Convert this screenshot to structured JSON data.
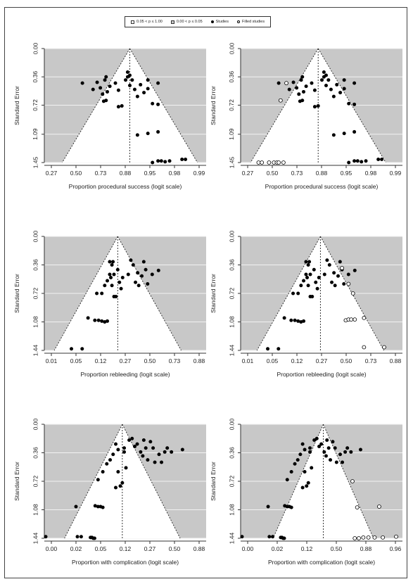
{
  "legend": {
    "items": [
      {
        "label": "0.05 < p ≤ 1.00",
        "swatch": "#ffffff"
      },
      {
        "label": "0.00 < p ≤ 0.05",
        "swatch": "#c8c8c8"
      },
      {
        "label": "Studies",
        "marker": "filled"
      },
      {
        "label": "Filled studies",
        "marker": "open"
      }
    ]
  },
  "colors": {
    "contour": "#c8c8c8",
    "funnel": "#ffffff",
    "grid": "#e8e8e8",
    "point": "#000000",
    "axis": "#333333"
  },
  "chart_data": [
    {
      "type": "scatter",
      "id": "success-observed",
      "xlabel": "Proportion procedural success (logit scale)",
      "ylabel": "Standard Error",
      "x_ticks": [
        "0.27",
        "0.50",
        "0.73",
        "0.88",
        "0.95",
        "0.98",
        "0.99"
      ],
      "y_ticks": [
        "0.00",
        "0.36",
        "0.72",
        "1.09",
        "1.45"
      ],
      "ylim": [
        0,
        1.45
      ],
      "x_logit_range": [
        -1.6,
        5.2
      ],
      "center": 0.88,
      "y_inverted": true,
      "studies": [
        [
          0.5,
          0.44
        ],
        [
          0.61,
          0.52
        ],
        [
          0.65,
          0.43
        ],
        [
          0.68,
          0.5
        ],
        [
          0.7,
          0.58
        ],
        [
          0.72,
          0.4
        ],
        [
          0.73,
          0.36
        ],
        [
          0.74,
          0.55
        ],
        [
          0.71,
          0.67
        ],
        [
          0.73,
          0.66
        ],
        [
          0.76,
          0.48
        ],
        [
          0.8,
          0.44
        ],
        [
          0.82,
          0.53
        ],
        [
          0.82,
          0.74
        ],
        [
          0.84,
          0.73
        ],
        [
          0.86,
          0.4
        ],
        [
          0.87,
          0.3
        ],
        [
          0.87,
          0.36
        ],
        [
          0.88,
          0.34
        ],
        [
          0.88,
          0.47
        ],
        [
          0.89,
          0.4
        ],
        [
          0.9,
          0.52
        ],
        [
          0.91,
          0.61
        ],
        [
          0.92,
          0.46
        ],
        [
          0.93,
          0.56
        ],
        [
          0.94,
          0.4
        ],
        [
          0.94,
          0.51
        ],
        [
          0.95,
          0.7
        ],
        [
          0.96,
          0.44
        ],
        [
          0.96,
          0.71
        ],
        [
          0.91,
          1.1
        ],
        [
          0.94,
          1.08
        ],
        [
          0.96,
          1.06
        ],
        [
          0.95,
          1.45
        ],
        [
          0.96,
          1.43
        ],
        [
          0.965,
          1.43
        ],
        [
          0.97,
          1.44
        ],
        [
          0.975,
          1.43
        ],
        [
          0.985,
          1.41
        ],
        [
          0.987,
          1.41
        ]
      ],
      "filled": []
    },
    {
      "type": "scatter",
      "id": "success-filled",
      "xlabel": "Proportion procedural success (logit scale)",
      "ylabel": "Standard Error",
      "x_ticks": [
        "0.27",
        "0.50",
        "0.73",
        "0.88",
        "0.95",
        "0.98",
        "0.99"
      ],
      "y_ticks": [
        "0.00",
        "0.36",
        "0.72",
        "1.09",
        "1.45"
      ],
      "ylim": [
        0,
        1.45
      ],
      "x_logit_range": [
        -1.6,
        5.2
      ],
      "center": 0.84,
      "y_inverted": true,
      "studies": [
        [
          0.5,
          0.44
        ],
        [
          0.61,
          0.52
        ],
        [
          0.65,
          0.43
        ],
        [
          0.68,
          0.5
        ],
        [
          0.7,
          0.58
        ],
        [
          0.72,
          0.4
        ],
        [
          0.73,
          0.36
        ],
        [
          0.74,
          0.55
        ],
        [
          0.71,
          0.67
        ],
        [
          0.73,
          0.66
        ],
        [
          0.76,
          0.48
        ],
        [
          0.8,
          0.44
        ],
        [
          0.82,
          0.53
        ],
        [
          0.82,
          0.74
        ],
        [
          0.84,
          0.73
        ],
        [
          0.86,
          0.4
        ],
        [
          0.87,
          0.3
        ],
        [
          0.87,
          0.36
        ],
        [
          0.88,
          0.34
        ],
        [
          0.88,
          0.47
        ],
        [
          0.89,
          0.4
        ],
        [
          0.9,
          0.52
        ],
        [
          0.91,
          0.61
        ],
        [
          0.92,
          0.46
        ],
        [
          0.93,
          0.56
        ],
        [
          0.94,
          0.4
        ],
        [
          0.94,
          0.51
        ],
        [
          0.95,
          0.7
        ],
        [
          0.96,
          0.44
        ],
        [
          0.96,
          0.71
        ],
        [
          0.91,
          1.1
        ],
        [
          0.94,
          1.08
        ],
        [
          0.96,
          1.06
        ],
        [
          0.95,
          1.45
        ],
        [
          0.96,
          1.43
        ],
        [
          0.965,
          1.43
        ],
        [
          0.97,
          1.44
        ],
        [
          0.975,
          1.43
        ],
        [
          0.985,
          1.41
        ],
        [
          0.987,
          1.41
        ]
      ],
      "filled": [
        [
          0.58,
          0.44
        ],
        [
          0.52,
          0.66
        ],
        [
          0.3,
          1.45
        ],
        [
          0.33,
          1.45
        ],
        [
          0.4,
          1.45
        ],
        [
          0.45,
          1.45
        ],
        [
          0.48,
          1.45
        ],
        [
          0.5,
          1.45
        ],
        [
          0.55,
          1.45
        ]
      ]
    },
    {
      "type": "scatter",
      "id": "rebleeding-observed",
      "xlabel": "Proportion rebleeding (logit scale)",
      "ylabel": "Standard Error",
      "x_ticks": [
        "0.01",
        "0.05",
        "0.12",
        "0.27",
        "0.50",
        "0.73",
        "0.88"
      ],
      "y_ticks": [
        "0.00",
        "0.36",
        "0.72",
        "1.08",
        "1.44"
      ],
      "ylim": [
        0,
        1.44
      ],
      "x_logit_range": [
        -5.0,
        2.2
      ],
      "center": 0.15,
      "y_inverted": true,
      "studies": [
        [
          0.022,
          1.42
        ],
        [
          0.035,
          1.42
        ],
        [
          0.045,
          1.03
        ],
        [
          0.06,
          1.06
        ],
        [
          0.07,
          1.06
        ],
        [
          0.08,
          1.07
        ],
        [
          0.09,
          1.08
        ],
        [
          0.1,
          1.07
        ],
        [
          0.065,
          0.72
        ],
        [
          0.08,
          0.72
        ],
        [
          0.09,
          0.62
        ],
        [
          0.1,
          0.56
        ],
        [
          0.11,
          0.48
        ],
        [
          0.11,
          0.32
        ],
        [
          0.115,
          0.52
        ],
        [
          0.12,
          0.62
        ],
        [
          0.12,
          0.36
        ],
        [
          0.125,
          0.32
        ],
        [
          0.13,
          0.48
        ],
        [
          0.13,
          0.76
        ],
        [
          0.14,
          0.76
        ],
        [
          0.15,
          0.42
        ],
        [
          0.16,
          0.58
        ],
        [
          0.17,
          0.66
        ],
        [
          0.18,
          0.52
        ],
        [
          0.22,
          0.48
        ],
        [
          0.24,
          0.3
        ],
        [
          0.26,
          0.36
        ],
        [
          0.28,
          0.58
        ],
        [
          0.3,
          0.46
        ],
        [
          0.31,
          0.62
        ],
        [
          0.34,
          0.5
        ],
        [
          0.36,
          0.32
        ],
        [
          0.38,
          0.42
        ],
        [
          0.4,
          0.6
        ],
        [
          0.45,
          0.48
        ],
        [
          0.52,
          0.43
        ]
      ],
      "filled": []
    },
    {
      "type": "scatter",
      "id": "rebleeding-filled",
      "xlabel": "Proportion rebleeding (logit scale)",
      "ylabel": "Standard Error",
      "x_ticks": [
        "0.01",
        "0.05",
        "0.12",
        "0.27",
        "0.50",
        "0.73",
        "0.88"
      ],
      "y_ticks": [
        "0.00",
        "0.36",
        "0.72",
        "1.08",
        "1.44"
      ],
      "ylim": [
        0,
        1.44
      ],
      "x_logit_range": [
        -5.0,
        2.2
      ],
      "center": 0.19,
      "y_inverted": true,
      "studies": [
        [
          0.022,
          1.42
        ],
        [
          0.035,
          1.42
        ],
        [
          0.045,
          1.03
        ],
        [
          0.06,
          1.06
        ],
        [
          0.07,
          1.06
        ],
        [
          0.08,
          1.07
        ],
        [
          0.09,
          1.08
        ],
        [
          0.1,
          1.07
        ],
        [
          0.065,
          0.72
        ],
        [
          0.08,
          0.72
        ],
        [
          0.09,
          0.62
        ],
        [
          0.1,
          0.56
        ],
        [
          0.11,
          0.48
        ],
        [
          0.11,
          0.32
        ],
        [
          0.115,
          0.52
        ],
        [
          0.12,
          0.62
        ],
        [
          0.12,
          0.36
        ],
        [
          0.125,
          0.32
        ],
        [
          0.13,
          0.48
        ],
        [
          0.13,
          0.76
        ],
        [
          0.14,
          0.76
        ],
        [
          0.15,
          0.42
        ],
        [
          0.16,
          0.58
        ],
        [
          0.17,
          0.66
        ],
        [
          0.18,
          0.52
        ],
        [
          0.22,
          0.48
        ],
        [
          0.24,
          0.3
        ],
        [
          0.26,
          0.36
        ],
        [
          0.28,
          0.58
        ],
        [
          0.3,
          0.46
        ],
        [
          0.31,
          0.62
        ],
        [
          0.34,
          0.5
        ],
        [
          0.36,
          0.32
        ],
        [
          0.38,
          0.42
        ],
        [
          0.4,
          0.6
        ],
        [
          0.45,
          0.48
        ],
        [
          0.52,
          0.43
        ]
      ],
      "filled": [
        [
          0.38,
          0.4
        ],
        [
          0.45,
          0.6
        ],
        [
          0.5,
          0.72
        ],
        [
          0.42,
          1.06
        ],
        [
          0.45,
          1.05
        ],
        [
          0.48,
          1.05
        ],
        [
          0.52,
          1.05
        ],
        [
          0.62,
          1.03
        ],
        [
          0.62,
          1.4
        ],
        [
          0.8,
          1.4
        ]
      ]
    },
    {
      "type": "scatter",
      "id": "complication-observed",
      "xlabel": "Proportion with complication (logit scale)",
      "ylabel": "Standard Error",
      "x_ticks": [
        "0.00",
        "0.02",
        "0.05",
        "0.12",
        "0.27",
        "0.50",
        "0.88"
      ],
      "y_ticks": [
        "0.00",
        "0.36",
        "0.72",
        "1.08",
        "1.44"
      ],
      "ylim": [
        0,
        1.44
      ],
      "x_logit_range": [
        -5.8,
        2.1
      ],
      "center": 0.12,
      "y_inverted": true,
      "studies": [
        [
          0.003,
          1.42
        ],
        [
          0.015,
          1.42
        ],
        [
          0.018,
          1.42
        ],
        [
          0.028,
          1.43
        ],
        [
          0.03,
          1.43
        ],
        [
          0.032,
          1.44
        ],
        [
          0.034,
          1.44
        ],
        [
          0.014,
          1.04
        ],
        [
          0.035,
          1.03
        ],
        [
          0.04,
          1.04
        ],
        [
          0.045,
          1.04
        ],
        [
          0.05,
          1.05
        ],
        [
          0.04,
          0.7
        ],
        [
          0.05,
          0.6
        ],
        [
          0.06,
          0.5
        ],
        [
          0.07,
          0.45
        ],
        [
          0.08,
          0.38
        ],
        [
          0.09,
          0.25
        ],
        [
          0.1,
          0.32
        ],
        [
          0.09,
          0.8
        ],
        [
          0.1,
          0.6
        ],
        [
          0.11,
          0.78
        ],
        [
          0.12,
          0.74
        ],
        [
          0.13,
          0.3
        ],
        [
          0.13,
          0.35
        ],
        [
          0.14,
          0.55
        ],
        [
          0.16,
          0.2
        ],
        [
          0.18,
          0.18
        ],
        [
          0.2,
          0.28
        ],
        [
          0.22,
          0.25
        ],
        [
          0.25,
          0.35
        ],
        [
          0.27,
          0.4
        ],
        [
          0.28,
          0.2
        ],
        [
          0.3,
          0.3
        ],
        [
          0.32,
          0.45
        ],
        [
          0.35,
          0.22
        ],
        [
          0.38,
          0.3
        ],
        [
          0.4,
          0.48
        ],
        [
          0.45,
          0.38
        ],
        [
          0.48,
          0.48
        ],
        [
          0.52,
          0.35
        ],
        [
          0.55,
          0.3
        ],
        [
          0.6,
          0.35
        ],
        [
          0.72,
          0.32
        ]
      ],
      "filled": []
    },
    {
      "type": "scatter",
      "id": "complication-filled",
      "xlabel": "Proportion with complication (logit scale)",
      "ylabel": "Standard Error",
      "x_ticks": [
        "0.00",
        "0.02",
        "0.12",
        "0.50",
        "0.88",
        "0.96"
      ],
      "y_ticks": [
        "0.00",
        "0.36",
        "0.72",
        "1.08",
        "1.44"
      ],
      "ylim": [
        0,
        1.44
      ],
      "x_logit_range": [
        -5.8,
        3.3
      ],
      "center": 0.24,
      "y_inverted": true,
      "studies": [
        [
          0.003,
          1.42
        ],
        [
          0.015,
          1.42
        ],
        [
          0.018,
          1.42
        ],
        [
          0.028,
          1.43
        ],
        [
          0.03,
          1.43
        ],
        [
          0.032,
          1.44
        ],
        [
          0.034,
          1.44
        ],
        [
          0.014,
          1.04
        ],
        [
          0.035,
          1.03
        ],
        [
          0.04,
          1.04
        ],
        [
          0.045,
          1.04
        ],
        [
          0.05,
          1.05
        ],
        [
          0.04,
          0.7
        ],
        [
          0.05,
          0.6
        ],
        [
          0.06,
          0.5
        ],
        [
          0.07,
          0.45
        ],
        [
          0.08,
          0.38
        ],
        [
          0.09,
          0.25
        ],
        [
          0.1,
          0.32
        ],
        [
          0.09,
          0.8
        ],
        [
          0.1,
          0.6
        ],
        [
          0.11,
          0.78
        ],
        [
          0.12,
          0.74
        ],
        [
          0.13,
          0.3
        ],
        [
          0.13,
          0.35
        ],
        [
          0.14,
          0.55
        ],
        [
          0.16,
          0.2
        ],
        [
          0.18,
          0.18
        ],
        [
          0.2,
          0.28
        ],
        [
          0.22,
          0.25
        ],
        [
          0.25,
          0.35
        ],
        [
          0.27,
          0.4
        ],
        [
          0.28,
          0.2
        ],
        [
          0.3,
          0.3
        ],
        [
          0.32,
          0.45
        ],
        [
          0.35,
          0.22
        ],
        [
          0.38,
          0.3
        ],
        [
          0.4,
          0.48
        ],
        [
          0.45,
          0.38
        ],
        [
          0.48,
          0.48
        ],
        [
          0.52,
          0.35
        ],
        [
          0.55,
          0.3
        ],
        [
          0.6,
          0.35
        ],
        [
          0.72,
          0.32
        ]
      ],
      "filled": [
        [
          0.62,
          0.72
        ],
        [
          0.68,
          1.05
        ],
        [
          0.88,
          1.04
        ],
        [
          0.65,
          1.44
        ],
        [
          0.7,
          1.44
        ],
        [
          0.75,
          1.43
        ],
        [
          0.8,
          1.43
        ],
        [
          0.85,
          1.43
        ],
        [
          0.9,
          1.43
        ],
        [
          0.95,
          1.42
        ]
      ]
    }
  ]
}
